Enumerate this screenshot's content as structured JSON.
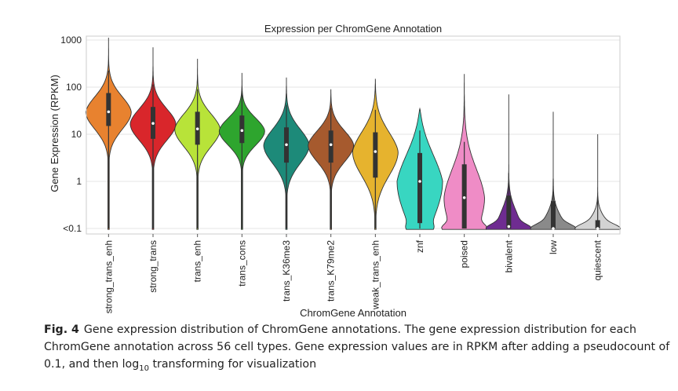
{
  "chart_data": {
    "type": "violin",
    "title": "Expression per ChromGene Annotation",
    "xlabel": "ChromGene Annotation",
    "ylabel": "Gene Expression (RPKM)",
    "yscale": "log",
    "yticks": [
      "<0.1",
      "1",
      "10",
      "100",
      "1000"
    ],
    "ylim": [
      0.1,
      1000
    ],
    "grid": "horizontal",
    "categories": [
      "strong_trans_enh",
      "strong_trans",
      "trans_enh",
      "trans_cons",
      "trans_K36me3",
      "trans_K79me2",
      "weak_trans_enh",
      "znf",
      "poised",
      "bivalent",
      "low",
      "quiescent"
    ],
    "colors": [
      "#e8822f",
      "#d9262b",
      "#b8e339",
      "#2ea52e",
      "#1d8a79",
      "#a65a2e",
      "#e6b32e",
      "#38d6c1",
      "#ef8cc6",
      "#6f2c91",
      "#8a8a8a",
      "#d3d3d3"
    ],
    "medians": [
      30,
      17,
      13,
      12,
      6,
      6,
      4.3,
      1.0,
      0.45,
      0.11,
      0.1,
      0.1
    ],
    "q1": [
      15,
      8,
      6,
      6.5,
      2.5,
      2.5,
      1.2,
      0.13,
      0.1,
      0.1,
      0.1,
      0.1
    ],
    "q3": [
      75,
      38,
      30,
      25,
      14,
      12,
      11,
      4,
      2.3,
      0.5,
      0.38,
      0.15
    ],
    "max": [
      1200,
      700,
      400,
      200,
      160,
      90,
      150,
      35,
      190,
      70,
      30,
      10
    ]
  },
  "caption": {
    "label": "Fig. 4",
    "text_before": "Gene expression distribution of ChromGene annotations. The gene expression distribution for each ChromGene annotation across 56 cell types. Gene expression values are in RPKM after adding a pseudocount of 0.1, and then log",
    "subscript": "10",
    "text_after": " transforming for visualization"
  }
}
